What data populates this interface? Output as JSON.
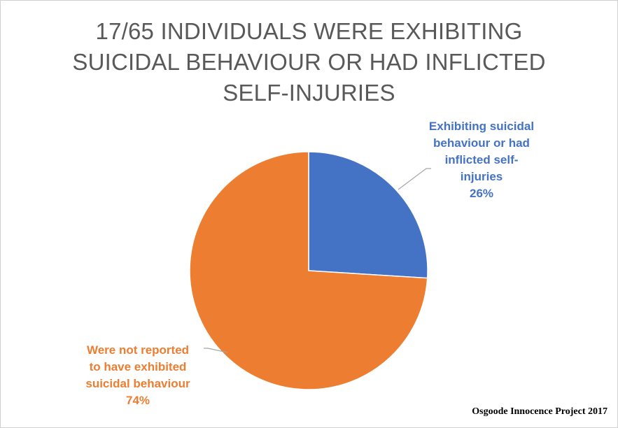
{
  "chart_data": {
    "type": "pie",
    "title_lines": [
      "17/65 INDIVIDUALS WERE EXHIBITING",
      "SUICIDAL BEHAVIOUR OR HAD INFLICTED",
      "SELF-INJURIES"
    ],
    "slices": [
      {
        "label_lines": [
          "Exhibiting suicidal",
          "behaviour or had",
          "inflicted self-",
          "injuries"
        ],
        "percent_label": "26%",
        "value": 26,
        "color": "#4472C4"
      },
      {
        "label_lines": [
          "Were not reported",
          "to have exhibited",
          "suicidal behaviour"
        ],
        "percent_label": "74%",
        "value": 74,
        "color": "#ED7D31"
      }
    ],
    "legend": "none",
    "label_position": "outside-with-leader-lines"
  },
  "source": "Osgoode Innocence Project 2017"
}
